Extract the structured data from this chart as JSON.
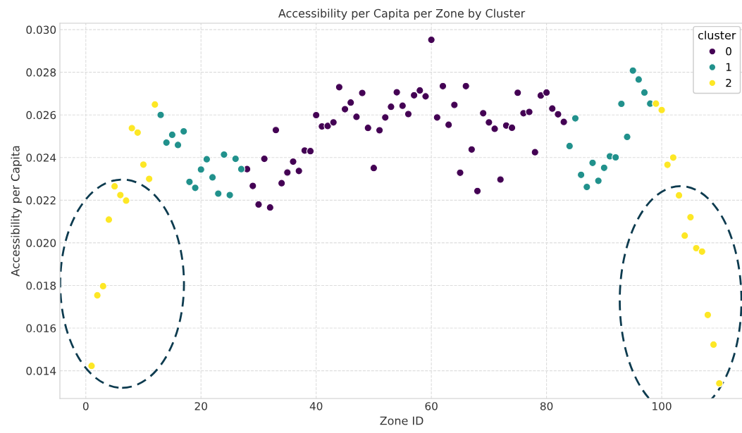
{
  "chart_data": {
    "type": "scatter",
    "title": "Accessibility per Capita per Zone by Cluster",
    "xlabel": "Zone ID",
    "ylabel": "Accessibility per Capita",
    "legend_title": "cluster",
    "legend": "top right",
    "grid": true,
    "marker": "circle",
    "xlim": [
      -4.5,
      114.2
    ],
    "ylim": [
      0.0127,
      0.0303
    ],
    "xticks": [
      0,
      20,
      40,
      60,
      80,
      100
    ],
    "yticks": [
      0.014,
      0.016,
      0.018,
      {
        "value": 0.02,
        "label": "0.020"
      },
      0.022,
      0.024,
      0.026,
      0.028,
      {
        "value": 0.03,
        "label": "0.030"
      }
    ],
    "series": [
      {
        "name": "0",
        "color": "#440154",
        "x": [
          28,
          29,
          30,
          31,
          32,
          33,
          34,
          35,
          36,
          37,
          38,
          39,
          40,
          41,
          42,
          43,
          44,
          45,
          46,
          47,
          48,
          49,
          50,
          51,
          52,
          53,
          54,
          55,
          56,
          57,
          58,
          59,
          60,
          61,
          62,
          63,
          64,
          65,
          66,
          67,
          68,
          69,
          70,
          71,
          72,
          73,
          74,
          75,
          76,
          77,
          78,
          79,
          80,
          81,
          82,
          83
        ],
        "values": [
          0.02346,
          0.02267,
          0.0218,
          0.02394,
          0.02166,
          0.02529,
          0.0228,
          0.0233,
          0.02381,
          0.02337,
          0.02433,
          0.0243,
          0.02599,
          0.02546,
          0.02548,
          0.02565,
          0.0273,
          0.02627,
          0.02658,
          0.02591,
          0.02703,
          0.02539,
          0.02351,
          0.02528,
          0.02588,
          0.02638,
          0.02706,
          0.02643,
          0.02604,
          0.02692,
          0.02715,
          0.02687,
          0.02952,
          0.02588,
          0.02735,
          0.02554,
          0.02647,
          0.02329,
          0.02735,
          0.02438,
          0.02243,
          0.02608,
          0.02565,
          0.02535,
          0.02297,
          0.0255,
          0.0254,
          0.02704,
          0.02608,
          0.02614,
          0.02425,
          0.02691,
          0.02705,
          0.0263,
          0.02603,
          0.02567
        ]
      },
      {
        "name": "1",
        "color": "#21918c",
        "x": [
          13,
          14,
          15,
          16,
          17,
          18,
          19,
          20,
          21,
          22,
          23,
          24,
          25,
          26,
          27,
          84,
          85,
          86,
          87,
          88,
          89,
          90,
          91,
          92,
          93,
          94,
          95,
          96,
          97,
          98
        ],
        "values": [
          0.026,
          0.0247,
          0.02507,
          0.02459,
          0.02523,
          0.02286,
          0.02258,
          0.02344,
          0.02392,
          0.02307,
          0.02231,
          0.02414,
          0.02224,
          0.02394,
          0.02346,
          0.02454,
          0.02584,
          0.02319,
          0.02262,
          0.02375,
          0.02291,
          0.02352,
          0.02406,
          0.02401,
          0.02652,
          0.02497,
          0.02808,
          0.02766,
          0.02705,
          0.02653
        ]
      },
      {
        "name": "2",
        "color": "#fde725",
        "x": [
          1,
          2,
          3,
          4,
          5,
          6,
          7,
          8,
          9,
          10,
          11,
          12,
          99,
          100,
          101,
          102,
          103,
          104,
          105,
          106,
          107,
          108,
          109,
          110
        ],
        "values": [
          0.01423,
          0.01754,
          0.01797,
          0.02109,
          0.02265,
          0.02224,
          0.02198,
          0.02538,
          0.02517,
          0.02367,
          0.023,
          0.02649,
          0.02653,
          0.02623,
          0.02366,
          0.024,
          0.02223,
          0.02034,
          0.0212,
          0.01975,
          0.01959,
          0.01662,
          0.01523,
          0.01341
        ]
      }
    ]
  }
}
